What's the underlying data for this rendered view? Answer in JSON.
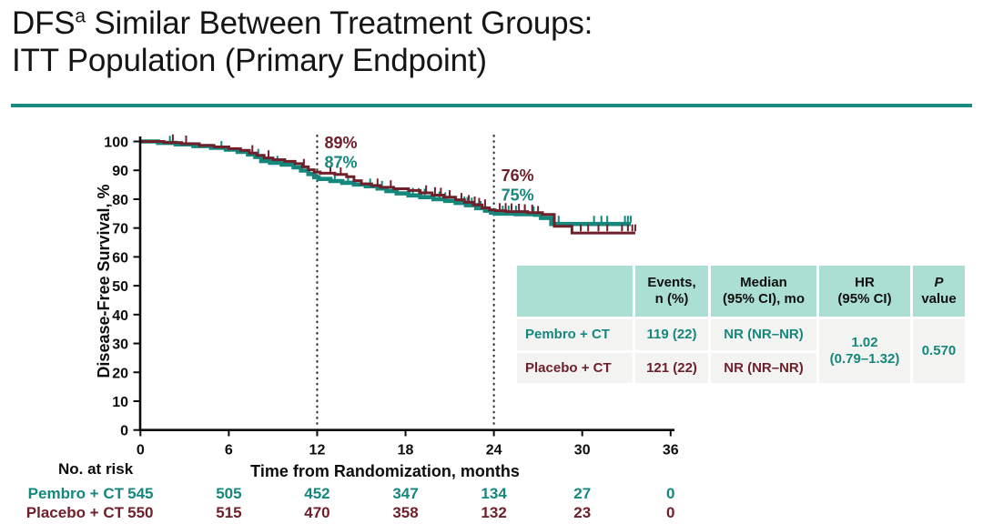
{
  "slide": {
    "title_line1_prefix": "DFS",
    "title_superscript": "a",
    "title_line1_rest": " Similar Between Treatment Groups:",
    "title_line2": "ITT Population (Primary Endpoint)"
  },
  "palette": {
    "accent": "#1A8B80",
    "teal": "#15877C",
    "maroon": "#6F202A",
    "header_bg": "#ABDFD3",
    "row_bg": "#F3F3F1",
    "axis": "#0b0b0b"
  },
  "chart_data": {
    "type": "line",
    "subtype": "kaplan-meier-step",
    "title": "",
    "xlabel": "Time from Randomization, months",
    "ylabel": "Disease-Free  Survival, %",
    "xlim": [
      0,
      36
    ],
    "ylim": [
      0,
      100
    ],
    "x_ticks": [
      0,
      6,
      12,
      18,
      24,
      30,
      36
    ],
    "y_ticks": [
      0,
      10,
      20,
      30,
      40,
      50,
      60,
      70,
      80,
      90,
      100
    ],
    "grid": false,
    "reference_lines_months": [
      12,
      24
    ],
    "series": [
      {
        "name": "Pembro + CT",
        "color": "#15877C",
        "points": [
          [
            0,
            100
          ],
          [
            1.2,
            99.5
          ],
          [
            2.4,
            99.0
          ],
          [
            3.6,
            98.4
          ],
          [
            4.8,
            97.8
          ],
          [
            5.8,
            97.2
          ],
          [
            6.6,
            96.4
          ],
          [
            7.3,
            95.5
          ],
          [
            7.8,
            94.6
          ],
          [
            8.2,
            93.2
          ],
          [
            8.8,
            92.6
          ],
          [
            9.6,
            92.0
          ],
          [
            10.4,
            91.0
          ],
          [
            10.9,
            89.9
          ],
          [
            11.4,
            88.7
          ],
          [
            11.8,
            87.6
          ],
          [
            12.1,
            87.0
          ],
          [
            12.9,
            86.3
          ],
          [
            13.7,
            85.7
          ],
          [
            14.5,
            85.1
          ],
          [
            15.3,
            84.5
          ],
          [
            16.1,
            83.7
          ],
          [
            16.7,
            82.8
          ],
          [
            17.4,
            82.0
          ],
          [
            18.2,
            81.3
          ],
          [
            19.0,
            80.7
          ],
          [
            19.9,
            80.0
          ],
          [
            20.7,
            79.4
          ],
          [
            21.4,
            78.7
          ],
          [
            22.1,
            77.9
          ],
          [
            22.8,
            76.9
          ],
          [
            23.4,
            76.0
          ],
          [
            23.8,
            75.3
          ],
          [
            24.1,
            75.0
          ],
          [
            25.5,
            74.8
          ],
          [
            26.8,
            74.6
          ],
          [
            27.2,
            73.5
          ],
          [
            27.9,
            71.4
          ],
          [
            33.3,
            71.4
          ]
        ],
        "censors": [
          [
            2.0,
            99.1
          ],
          [
            5.5,
            97.3
          ],
          [
            8.0,
            94.6
          ],
          [
            9.3,
            92.2
          ],
          [
            13.2,
            86.1
          ],
          [
            14.1,
            85.5
          ],
          [
            15.6,
            84.3
          ],
          [
            16.4,
            83.5
          ],
          [
            18.5,
            81.1
          ],
          [
            18.9,
            81.0
          ],
          [
            19.3,
            80.8
          ],
          [
            20.3,
            79.8
          ],
          [
            20.7,
            79.5
          ],
          [
            21.8,
            78.2
          ],
          [
            22.0,
            78.1
          ],
          [
            22.2,
            77.9
          ],
          [
            22.5,
            77.7
          ],
          [
            23.1,
            76.5
          ],
          [
            24.6,
            74.9
          ],
          [
            25.0,
            74.9
          ],
          [
            25.5,
            74.9
          ],
          [
            26.1,
            74.9
          ],
          [
            26.7,
            74.7
          ],
          [
            28.4,
            71.4
          ],
          [
            30.8,
            71.4
          ],
          [
            31.3,
            71.4
          ],
          [
            31.7,
            71.4
          ],
          [
            32.9,
            71.4
          ],
          [
            33.1,
            71.4
          ],
          [
            33.3,
            71.4
          ]
        ]
      },
      {
        "name": "Placebo + CT",
        "color": "#6F202A",
        "points": [
          [
            0,
            100
          ],
          [
            1.6,
            99.6
          ],
          [
            2.8,
            99.2
          ],
          [
            4.0,
            98.6
          ],
          [
            5.0,
            98.1
          ],
          [
            6.0,
            97.5
          ],
          [
            6.8,
            96.9
          ],
          [
            7.4,
            96.0
          ],
          [
            7.9,
            95.2
          ],
          [
            8.4,
            94.3
          ],
          [
            9.0,
            93.7
          ],
          [
            9.8,
            93.1
          ],
          [
            10.5,
            92.3
          ],
          [
            11.0,
            91.2
          ],
          [
            11.4,
            90.2
          ],
          [
            11.8,
            89.4
          ],
          [
            12.2,
            89.0
          ],
          [
            13.2,
            88.6
          ],
          [
            14.0,
            87.8
          ],
          [
            14.5,
            86.4
          ],
          [
            15.0,
            85.3
          ],
          [
            15.7,
            84.7
          ],
          [
            16.3,
            84.1
          ],
          [
            17.2,
            83.6
          ],
          [
            18.2,
            83.0
          ],
          [
            19.0,
            82.2
          ],
          [
            19.8,
            81.4
          ],
          [
            20.6,
            80.7
          ],
          [
            21.4,
            79.8
          ],
          [
            22.0,
            78.9
          ],
          [
            22.6,
            78.0
          ],
          [
            23.2,
            77.0
          ],
          [
            23.7,
            76.3
          ],
          [
            24.1,
            76.0
          ],
          [
            24.8,
            75.7
          ],
          [
            26.3,
            75.3
          ],
          [
            27.3,
            74.7
          ],
          [
            28.1,
            70.6
          ],
          [
            29.3,
            68.3
          ],
          [
            33.6,
            68.3
          ]
        ],
        "censors": [
          [
            2.2,
            99.6
          ],
          [
            3.1,
            99.2
          ],
          [
            7.6,
            95.9
          ],
          [
            8.7,
            94.1
          ],
          [
            11.1,
            91.1
          ],
          [
            12.9,
            88.7
          ],
          [
            13.6,
            88.2
          ],
          [
            16.1,
            84.3
          ],
          [
            17.0,
            83.7
          ],
          [
            19.4,
            82.0
          ],
          [
            20.0,
            81.3
          ],
          [
            20.4,
            81.1
          ],
          [
            21.0,
            80.3
          ],
          [
            21.8,
            79.3
          ],
          [
            22.3,
            78.6
          ],
          [
            22.7,
            78.1
          ],
          [
            23.0,
            77.6
          ],
          [
            23.4,
            77.1
          ],
          [
            24.4,
            75.8
          ],
          [
            24.8,
            75.8
          ],
          [
            25.2,
            75.7
          ],
          [
            25.7,
            75.6
          ],
          [
            26.1,
            75.4
          ],
          [
            26.6,
            75.3
          ],
          [
            27.0,
            74.8
          ],
          [
            29.9,
            68.4
          ],
          [
            30.4,
            68.4
          ],
          [
            31.1,
            68.4
          ],
          [
            31.7,
            68.4
          ],
          [
            32.7,
            68.4
          ],
          [
            33.1,
            68.4
          ],
          [
            33.4,
            68.4
          ],
          [
            33.6,
            68.4
          ]
        ]
      }
    ],
    "milestones": [
      {
        "month": 12,
        "labels": [
          {
            "text": "89%",
            "series": "Placebo + CT"
          },
          {
            "text": "87%",
            "series": "Pembro + CT"
          }
        ]
      },
      {
        "month": 24,
        "labels": [
          {
            "text": "76%",
            "series": "Placebo + CT"
          },
          {
            "text": "75%",
            "series": "Pembro + CT"
          }
        ]
      }
    ]
  },
  "no_at_risk": {
    "label": "No. at risk",
    "rows": [
      {
        "name": "Pembro + CT",
        "counts": [
          545,
          505,
          452,
          347,
          134,
          27,
          0
        ]
      },
      {
        "name": "Placebo + CT",
        "counts": [
          550,
          515,
          470,
          358,
          132,
          23,
          0
        ]
      }
    ]
  },
  "stats_table": {
    "headers": [
      {
        "line1": "Events,",
        "line2": "n (%)"
      },
      {
        "line1": "Median",
        "line2": "(95% CI), mo"
      },
      {
        "line1": "HR",
        "line2": "(95% CI)"
      },
      {
        "line1": "P",
        "line2": "value"
      }
    ],
    "rows": [
      {
        "label": "Pembro + CT",
        "events": "119 (22)",
        "median": "NR (NR–NR)"
      },
      {
        "label": "Placebo + CT",
        "events": "121 (22)",
        "median": "NR (NR–NR)"
      }
    ],
    "merged": {
      "hr_line1": "1.02",
      "hr_line2": "(0.79–1.32)",
      "p_value": "0.570"
    }
  }
}
